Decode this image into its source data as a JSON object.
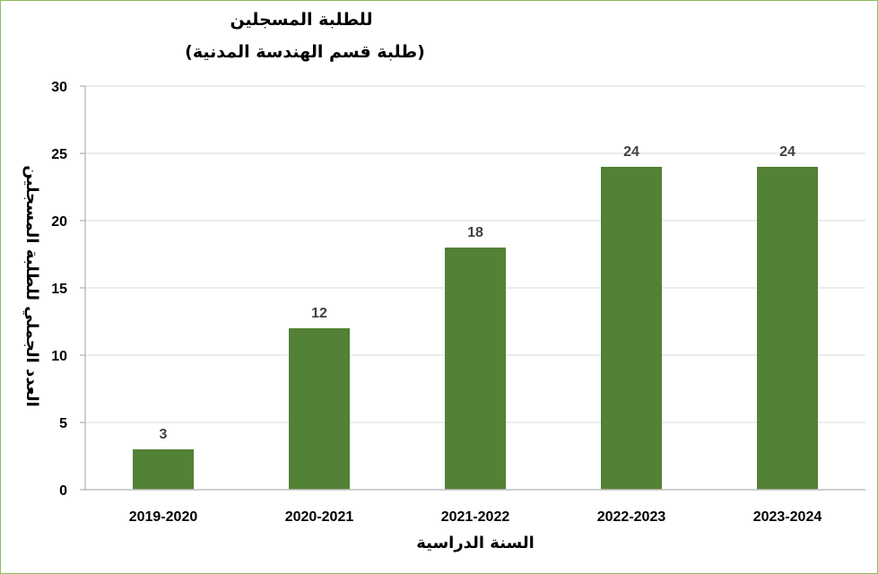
{
  "chart_data": {
    "type": "bar",
    "title": "للطلبة المسجلين",
    "subtitle": "(طلبة قسم الهندسة المدنية)",
    "xlabel": "السنة الدراسية",
    "ylabel": "العدد الجملي للطلبة المسجلين",
    "categories": [
      "2019-2020",
      "2020-2021",
      "2021-2022",
      "2022-2023",
      "2023-2024"
    ],
    "values": [
      3,
      12,
      18,
      24,
      24
    ],
    "ylim": [
      0,
      30
    ],
    "yticks": [
      0,
      5,
      10,
      15,
      20,
      25,
      30
    ],
    "grid": true,
    "bar_color": "#538135",
    "grid_color": "#d9d9d9",
    "frame_color": "#8bbf5a"
  }
}
